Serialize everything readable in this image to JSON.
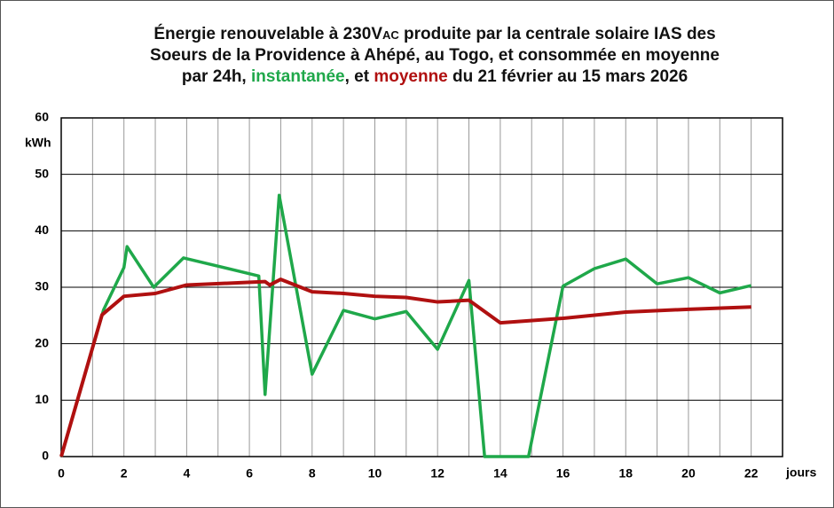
{
  "chart_data": {
    "type": "line",
    "title": [
      "Énergie renouvelable à 230V",
      "AC",
      " produite par la centrale solaire IAS des",
      "Soeurs de la Providence à Ahépé, au Togo, et consommée en moyenne",
      "par 24h, ",
      ", et ",
      " du 21 février au 15 mars 2026"
    ],
    "y_label": "kWh",
    "x_label": "jours",
    "xlim": [
      0,
      23
    ],
    "ylim": [
      0,
      60
    ],
    "xticks": [
      0,
      2,
      4,
      6,
      8,
      10,
      12,
      14,
      16,
      18,
      20,
      22
    ],
    "xgrid_minor": [
      1,
      3,
      5,
      7,
      9,
      11,
      13,
      15,
      17,
      19,
      21
    ],
    "yticks": [
      0,
      10,
      20,
      30,
      40,
      50,
      60
    ],
    "grid": true,
    "series": [
      {
        "name": "instantanée",
        "color": "#1fa84a",
        "x": [
          0,
          1.35,
          2,
          2.1,
          2.95,
          3.9,
          6.3,
          6.5,
          6.95,
          8,
          9,
          10,
          11,
          12,
          13,
          13.5,
          14.9,
          16,
          17,
          18,
          19,
          20,
          21,
          22
        ],
        "values": [
          0,
          26,
          33.5,
          37.2,
          30,
          35.2,
          32,
          11,
          46.3,
          14.6,
          25.9,
          24.4,
          25.7,
          19,
          31.2,
          0,
          0,
          30.2,
          33.3,
          35,
          30.6,
          31.7,
          29,
          30.3
        ]
      },
      {
        "name": "moyenne",
        "color": "#b01010",
        "x": [
          0,
          1.3,
          2,
          3,
          4,
          6.5,
          6.65,
          7,
          8,
          9,
          10,
          11,
          12,
          13,
          14,
          16,
          18,
          20,
          22
        ],
        "values": [
          0,
          25.1,
          28.4,
          28.9,
          30.4,
          31,
          30.4,
          31.4,
          29.2,
          28.9,
          28.4,
          28.2,
          27.4,
          27.7,
          23.7,
          24.5,
          25.6,
          26.1,
          26.5
        ]
      }
    ]
  }
}
